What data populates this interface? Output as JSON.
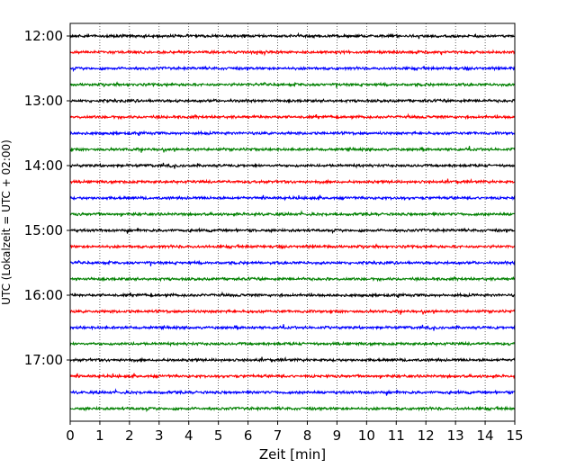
{
  "chart_data": {
    "type": "line",
    "subtype": "helicorder",
    "xlabel": "Zeit  [min]",
    "ylabel": "UTC (Lokalzeit = UTC + 02:00)",
    "xlim": [
      0,
      15
    ],
    "x_ticks": [
      "0",
      "1",
      "2",
      "3",
      "4",
      "5",
      "6",
      "7",
      "8",
      "9",
      "10",
      "11",
      "12",
      "13",
      "14",
      "15"
    ],
    "y_ticks": [
      "12:00",
      "13:00",
      "14:00",
      "15:00",
      "16:00",
      "17:00"
    ],
    "trace_interval_min": 15,
    "trace_start_times": [
      "12:00",
      "12:15",
      "12:30",
      "12:45",
      "13:00",
      "13:15",
      "13:30",
      "13:45",
      "14:00",
      "14:15",
      "14:30",
      "14:45",
      "15:00",
      "15:15",
      "15:30",
      "15:45",
      "16:00",
      "16:15",
      "16:30",
      "16:45",
      "17:00",
      "17:15",
      "17:30",
      "17:45"
    ],
    "trace_color_cycle": [
      "#000000",
      "#ff0000",
      "#0000ff",
      "#008000"
    ],
    "grid": "vertical dotted at each minute",
    "series_description": "low-amplitude seismic noise, no major events"
  }
}
